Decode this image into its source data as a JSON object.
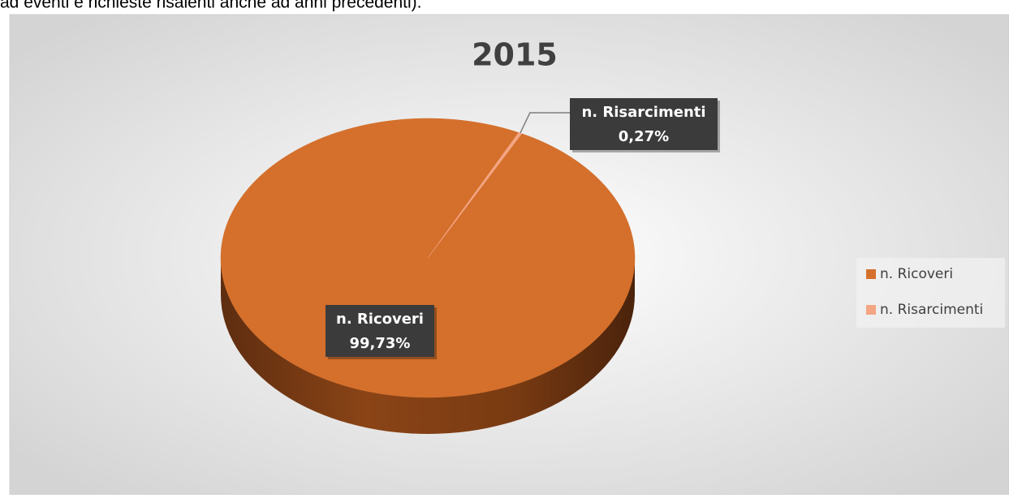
{
  "caption": "ad eventi e richieste risalenti anche ad anni precedenti).",
  "chart_data": {
    "type": "pie",
    "title": "2015",
    "categories": [
      "n. Ricoveri",
      "n. Risarcimenti"
    ],
    "values": [
      99.73,
      0.27
    ],
    "value_labels": [
      "99,73%",
      "0,27%"
    ],
    "colors": [
      "#d4702c",
      "#f4a583"
    ],
    "legend": "right"
  }
}
